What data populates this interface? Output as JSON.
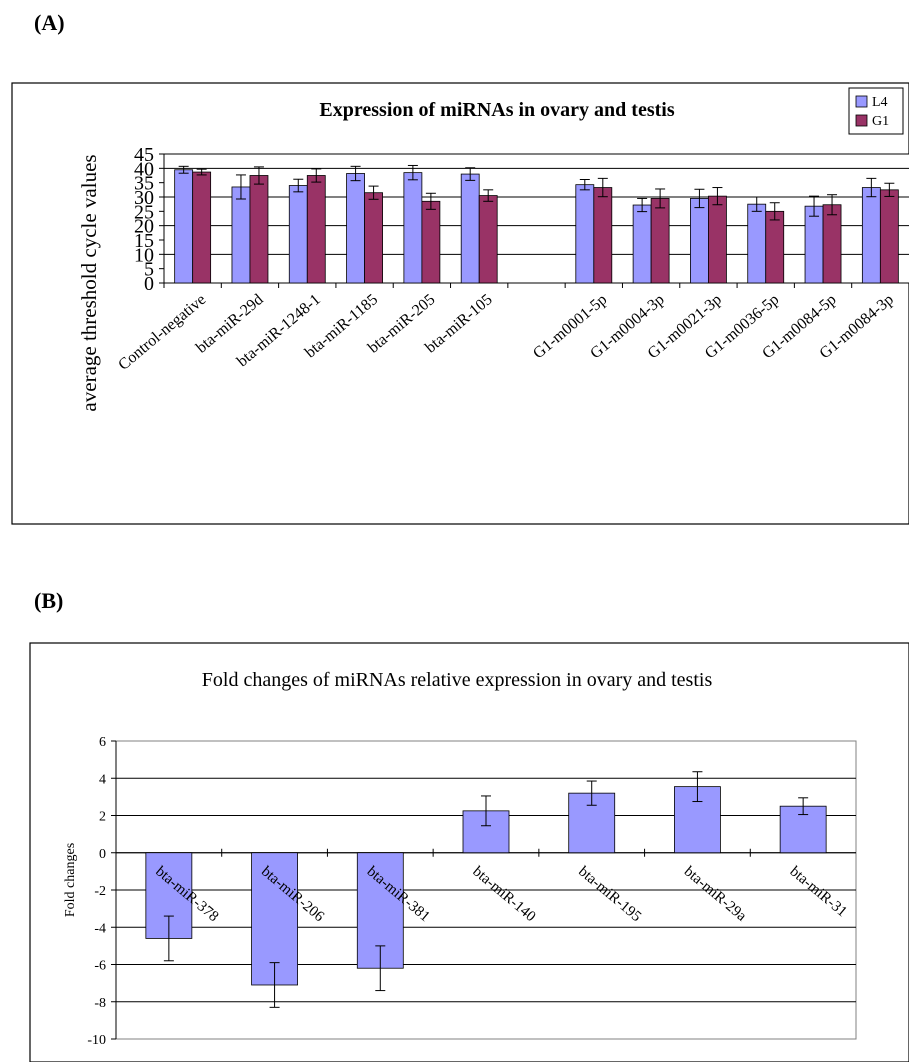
{
  "panels": {
    "a_label": "(A)",
    "b_label": "(B)"
  },
  "chart_data": [
    {
      "type": "bar",
      "title": "Expression of miRNAs in ovary and testis",
      "xlabel": "",
      "ylabel": "average threshold cycle values",
      "ylim": [
        0,
        45
      ],
      "yticks": [
        0,
        5,
        10,
        15,
        20,
        25,
        30,
        35,
        40,
        45
      ],
      "grid": true,
      "legend_position": "top-right",
      "categories": [
        "Control-negative",
        "bta-miR-29d",
        "bta-miR-1248-1",
        "bta-miR-1185",
        "bta-miR-205",
        "bta-miR-105",
        "",
        "G1-m0001-5p",
        "G1-m0004-3p",
        "G1-m0021-3p",
        "G1-m0036-5p",
        "G1-m0084-5p",
        "G1-m0084-3p"
      ],
      "series": [
        {
          "name": "L4",
          "color": "#9999ff",
          "values": [
            39.5,
            33.5,
            34,
            38.2,
            38.5,
            38,
            null,
            34.3,
            27.2,
            29.5,
            27.5,
            26.8,
            33.3
          ],
          "errors": [
            1.2,
            4.2,
            2.2,
            2.5,
            2.5,
            2.2,
            null,
            1.8,
            2.3,
            3.2,
            2.5,
            3.5,
            3.2
          ]
        },
        {
          "name": "G1",
          "color": "#993366",
          "values": [
            38.7,
            37.5,
            37.5,
            31.5,
            28.5,
            30.5,
            null,
            33.3,
            29.5,
            30.3,
            25,
            27.3,
            32.5
          ],
          "errors": [
            1,
            3,
            2.3,
            2.3,
            2.8,
            2,
            null,
            3.2,
            3.3,
            3,
            3,
            3.5,
            2.3
          ]
        }
      ]
    },
    {
      "type": "bar",
      "title": "Fold changes of miRNAs relative expression in ovary and testis",
      "xlabel": "",
      "ylabel": "Fold changes",
      "ylim": [
        -10,
        6
      ],
      "yticks": [
        -10,
        -8,
        -6,
        -4,
        -2,
        0,
        2,
        4,
        6
      ],
      "grid": true,
      "categories": [
        "bta-miR-378",
        "bta-miR-206",
        "bta-miR-381",
        "bta-miR-140",
        "bta-miR-195",
        "bta-miR-29a",
        "bta-miR-31"
      ],
      "series": [
        {
          "color": "#9999ff",
          "values": [
            -4.6,
            -7.1,
            -6.2,
            2.25,
            3.2,
            3.55,
            2.5
          ],
          "errors": [
            1.2,
            1.2,
            1.2,
            0.8,
            0.65,
            0.8,
            0.45
          ]
        }
      ]
    }
  ]
}
